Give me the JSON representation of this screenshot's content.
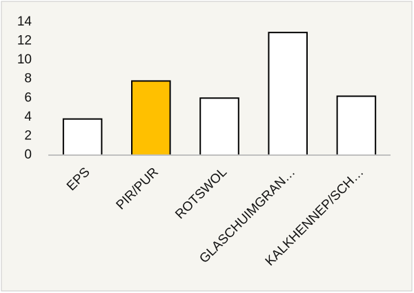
{
  "chart_data": {
    "type": "bar",
    "categories": [
      "EPS",
      "PIR/PUR",
      "ROTSWOL",
      "GLASCHUIMGRAN…",
      "KALKHENNEP/SCH…"
    ],
    "values": [
      3.8,
      7.8,
      6.0,
      12.9,
      6.2
    ],
    "colors": [
      "#ffffff",
      "#ffc000",
      "#ffffff",
      "#ffffff",
      "#ffffff"
    ],
    "edge_color": "#000000",
    "ylim": [
      0,
      14
    ],
    "yticks": [
      0,
      2,
      4,
      6,
      8,
      10,
      12,
      14
    ],
    "grid": false
  }
}
